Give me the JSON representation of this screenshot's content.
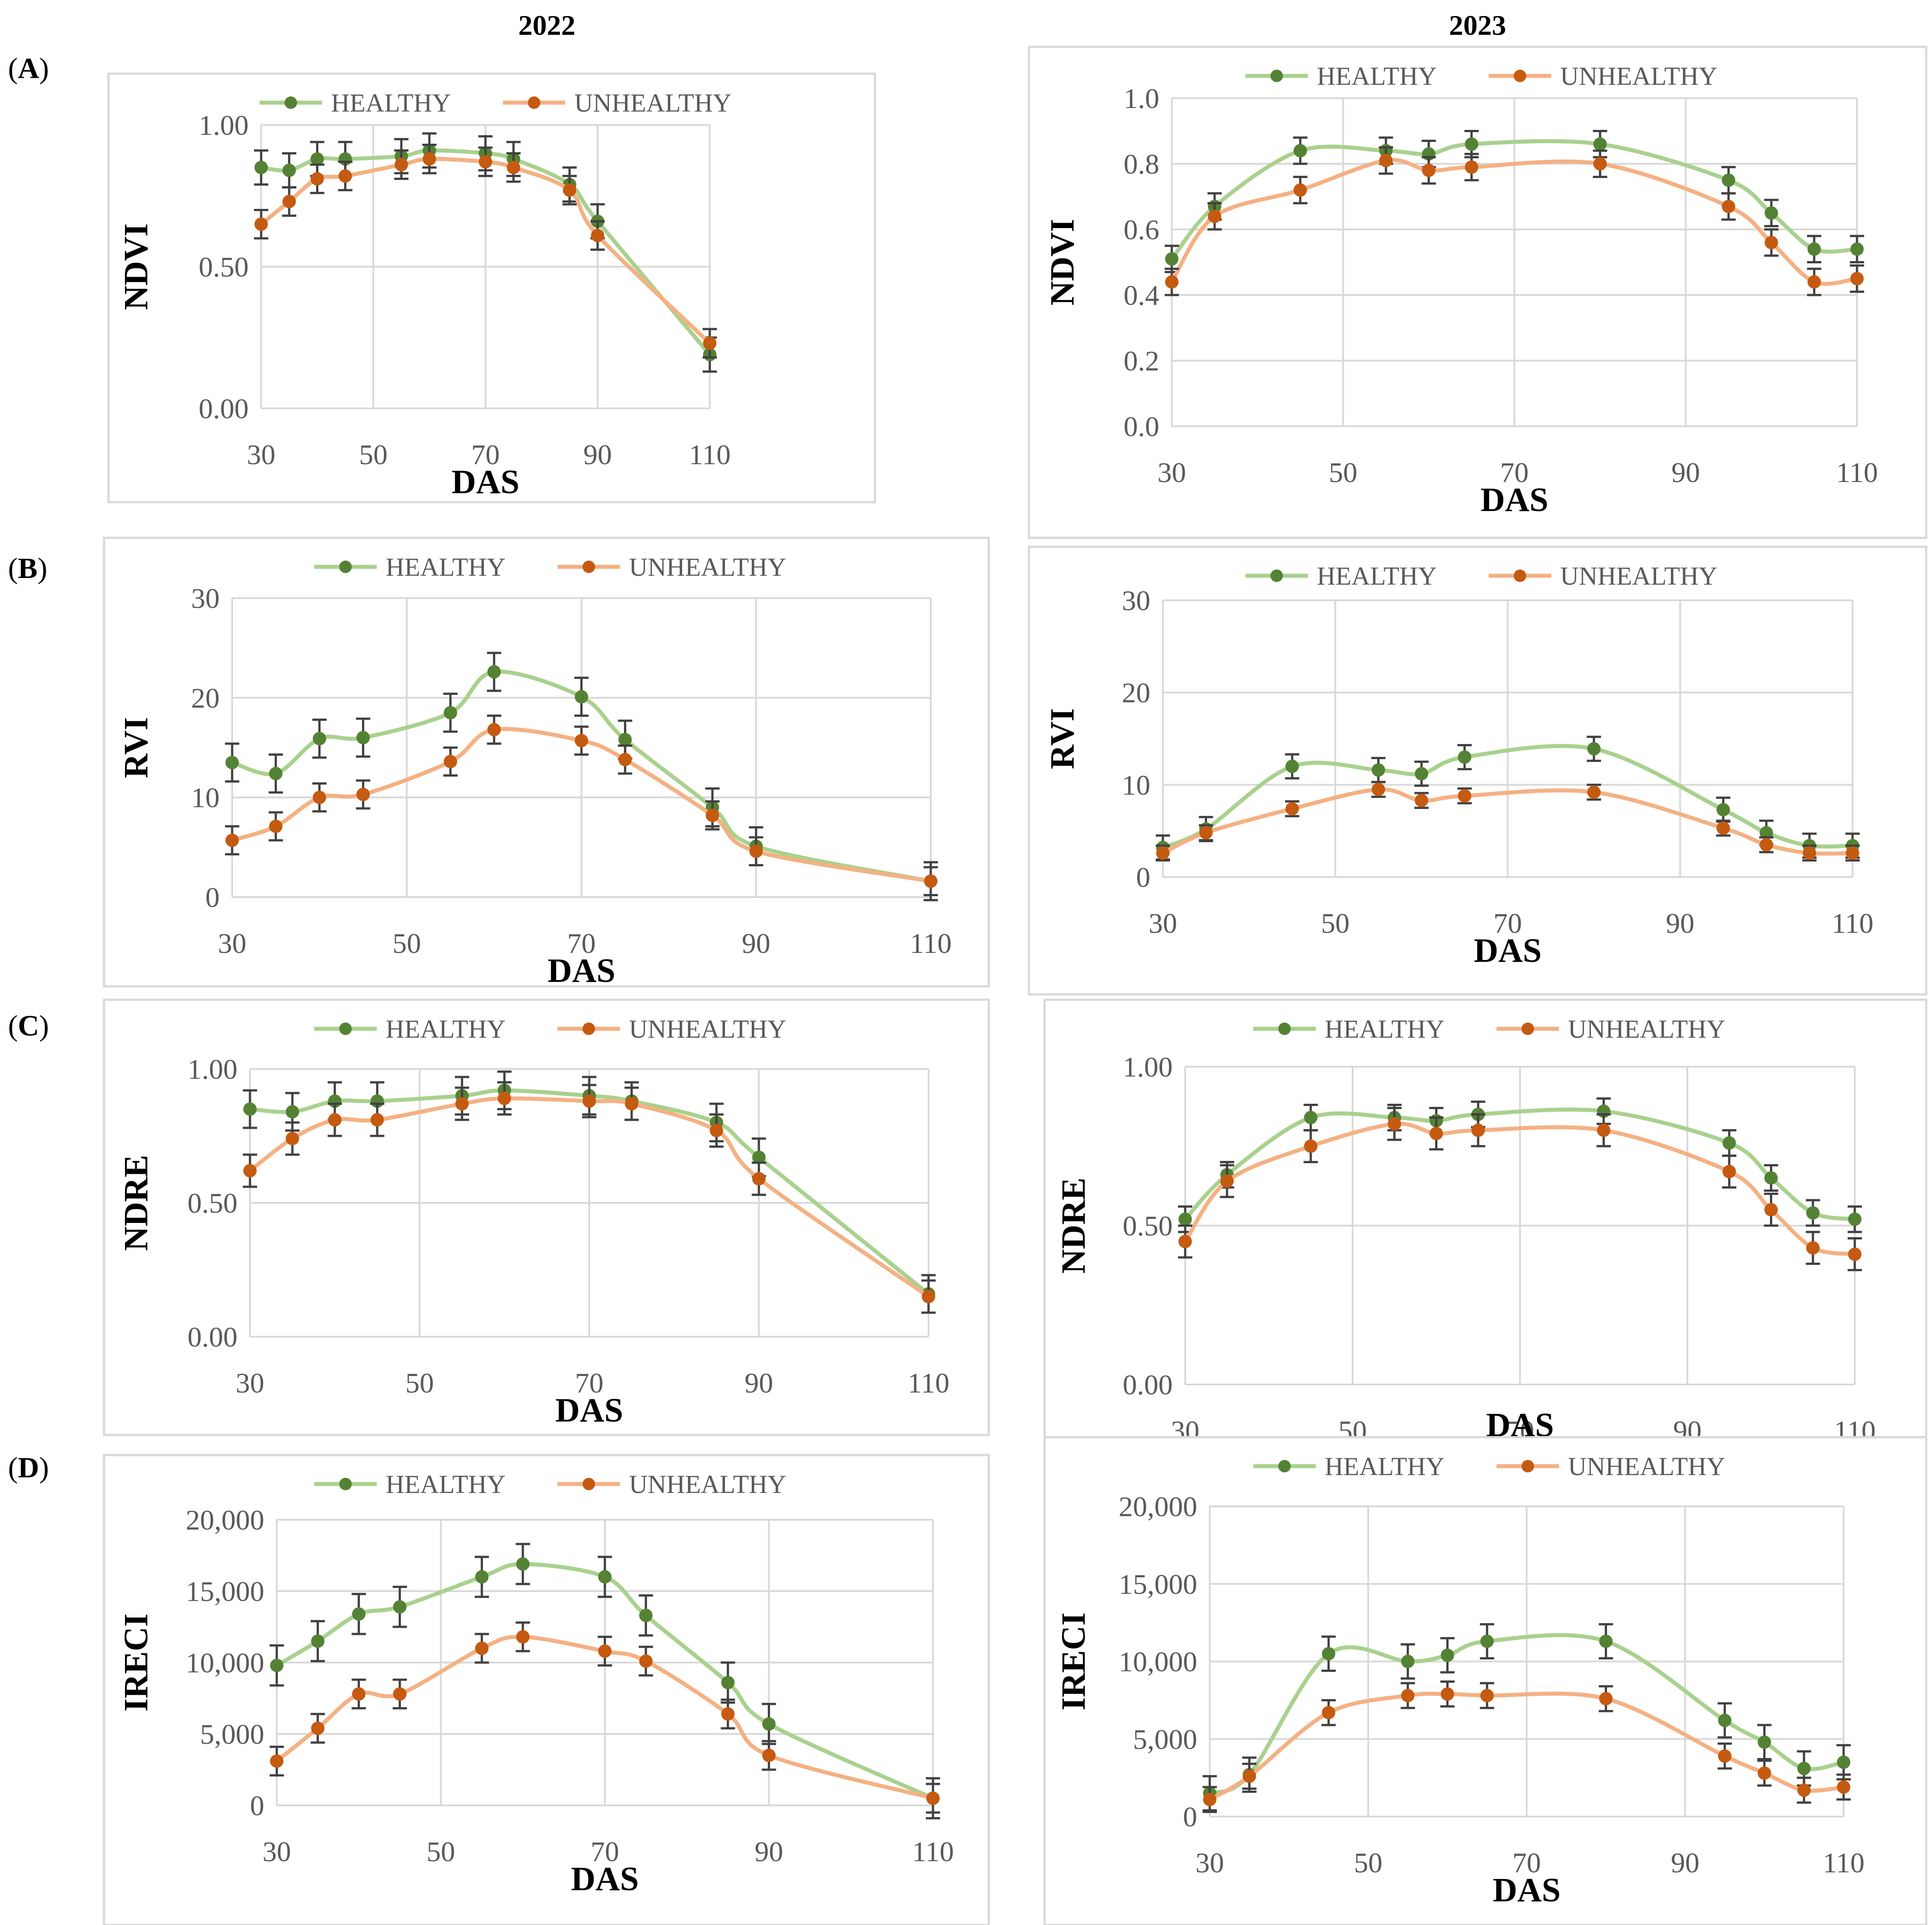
{
  "figure": {
    "columns": [
      "2022",
      "2023"
    ],
    "row_labels": [
      {
        "open": "(",
        "letter": "A",
        "close": ")"
      },
      {
        "open": "(",
        "letter": "B",
        "close": ")"
      },
      {
        "open": "(",
        "letter": "C",
        "close": ")"
      },
      {
        "open": "(",
        "letter": "D",
        "close": ")"
      }
    ],
    "legend": {
      "healthy": "HEALTHY",
      "unhealthy": "UNHEALTHY"
    },
    "colors": {
      "healthy_line": "#a9d18e",
      "healthy_marker": "#548235",
      "unhealthy_line": "#f4b183",
      "unhealthy_marker": "#c55a11",
      "error_bar": "#404040",
      "grid": "#d9d9d9",
      "frame": "#d9d9d9",
      "text": "#595959"
    }
  },
  "chart_data": [
    {
      "id": "A-2022",
      "type": "line",
      "title": "",
      "xlabel": "DAS",
      "ylabel": "NDVI",
      "x": [
        30,
        35,
        40,
        45,
        55,
        60,
        70,
        75,
        85,
        90,
        110
      ],
      "xlim": [
        30,
        110
      ],
      "xticks": [
        30,
        50,
        70,
        90,
        110
      ],
      "xtick_labels": [
        "30",
        "50",
        "70",
        "90",
        "110"
      ],
      "ylim": [
        0,
        1.0
      ],
      "yticks": [
        0,
        0.5,
        1.0
      ],
      "ytick_labels": [
        "0.00",
        "0.50",
        "1.00"
      ],
      "grid": "both",
      "legend": "top-center",
      "series": [
        {
          "name": "HEALTHY",
          "values": [
            0.85,
            0.84,
            0.88,
            0.88,
            0.89,
            0.91,
            0.9,
            0.88,
            0.79,
            0.66,
            0.19
          ],
          "errors": [
            0.06,
            0.06,
            0.06,
            0.06,
            0.06,
            0.06,
            0.06,
            0.06,
            0.06,
            0.06,
            0.06
          ]
        },
        {
          "name": "UNHEALTHY",
          "values": [
            0.65,
            0.73,
            0.81,
            0.82,
            0.86,
            0.88,
            0.87,
            0.85,
            0.77,
            0.61,
            0.23
          ],
          "errors": [
            0.05,
            0.05,
            0.05,
            0.05,
            0.05,
            0.05,
            0.05,
            0.05,
            0.05,
            0.05,
            0.05
          ]
        }
      ]
    },
    {
      "id": "A-2023",
      "type": "line",
      "title": "",
      "xlabel": "DAS",
      "ylabel": "NDVI",
      "x": [
        30,
        35,
        45,
        55,
        60,
        65,
        80,
        95,
        100,
        105,
        110
      ],
      "xlim": [
        30,
        110
      ],
      "xticks": [
        30,
        50,
        70,
        90,
        110
      ],
      "xtick_labels": [
        "30",
        "50",
        "70",
        "90",
        "110"
      ],
      "ylim": [
        0,
        1.0
      ],
      "yticks": [
        0,
        0.2,
        0.4,
        0.6,
        0.8,
        1.0
      ],
      "ytick_labels": [
        "0.0",
        "0.2",
        "0.4",
        "0.6",
        "0.8",
        "1.0"
      ],
      "grid": "both",
      "legend": "top-center",
      "series": [
        {
          "name": "HEALTHY",
          "values": [
            0.51,
            0.67,
            0.84,
            0.84,
            0.83,
            0.86,
            0.86,
            0.75,
            0.65,
            0.54,
            0.54
          ],
          "errors": [
            0.04,
            0.04,
            0.04,
            0.04,
            0.04,
            0.04,
            0.04,
            0.04,
            0.04,
            0.04,
            0.04
          ]
        },
        {
          "name": "UNHEALTHY",
          "values": [
            0.44,
            0.64,
            0.72,
            0.81,
            0.78,
            0.79,
            0.8,
            0.67,
            0.56,
            0.44,
            0.45
          ],
          "errors": [
            0.04,
            0.04,
            0.04,
            0.04,
            0.04,
            0.04,
            0.04,
            0.04,
            0.04,
            0.04,
            0.04
          ]
        }
      ]
    },
    {
      "id": "B-2022",
      "type": "line",
      "title": "",
      "xlabel": "DAS",
      "ylabel": "RVI",
      "x": [
        30,
        35,
        40,
        45,
        55,
        60,
        70,
        75,
        85,
        90,
        110
      ],
      "xlim": [
        30,
        110
      ],
      "xticks": [
        30,
        50,
        70,
        90,
        110
      ],
      "xtick_labels": [
        "30",
        "50",
        "70",
        "90",
        "110"
      ],
      "ylim": [
        0,
        30
      ],
      "yticks": [
        0,
        10,
        20,
        30
      ],
      "ytick_labels": [
        "0",
        "10",
        "20",
        "30"
      ],
      "grid": "both",
      "legend": "top-center",
      "series": [
        {
          "name": "HEALTHY",
          "values": [
            13.5,
            12.4,
            15.9,
            16.0,
            18.5,
            22.6,
            20.1,
            15.8,
            9.0,
            5.1,
            1.6
          ],
          "errors": [
            1.9,
            1.9,
            1.9,
            1.9,
            1.9,
            1.9,
            1.9,
            1.9,
            1.9,
            1.9,
            1.9
          ]
        },
        {
          "name": "UNHEALTHY",
          "values": [
            5.7,
            7.1,
            10.0,
            10.3,
            13.6,
            16.8,
            15.7,
            13.8,
            8.2,
            4.6,
            1.6
          ],
          "errors": [
            1.4,
            1.4,
            1.4,
            1.4,
            1.4,
            1.4,
            1.4,
            1.4,
            1.4,
            1.4,
            1.4
          ]
        }
      ]
    },
    {
      "id": "B-2023",
      "type": "line",
      "title": "",
      "xlabel": "DAS",
      "ylabel": "RVI",
      "x": [
        30,
        35,
        45,
        55,
        60,
        65,
        80,
        95,
        100,
        105,
        110
      ],
      "xlim": [
        30,
        110
      ],
      "xticks": [
        30,
        50,
        70,
        90,
        110
      ],
      "xtick_labels": [
        "30",
        "50",
        "70",
        "90",
        "110"
      ],
      "ylim": [
        0,
        30
      ],
      "yticks": [
        0,
        10,
        20,
        30
      ],
      "ytick_labels": [
        "0",
        "10",
        "20",
        "30"
      ],
      "grid": "both",
      "legend": "top-center",
      "series": [
        {
          "name": "HEALTHY",
          "values": [
            3.2,
            5.2,
            12.0,
            11.6,
            11.2,
            13.0,
            13.9,
            7.3,
            4.8,
            3.4,
            3.4
          ],
          "errors": [
            1.3,
            1.3,
            1.3,
            1.3,
            1.3,
            1.3,
            1.3,
            1.3,
            1.3,
            1.3,
            1.3
          ]
        },
        {
          "name": "UNHEALTHY",
          "values": [
            2.6,
            4.8,
            7.4,
            9.5,
            8.3,
            8.8,
            9.2,
            5.3,
            3.5,
            2.6,
            2.6
          ],
          "errors": [
            0.8,
            0.8,
            0.8,
            0.8,
            0.8,
            0.8,
            0.8,
            0.8,
            0.8,
            0.8,
            0.8
          ]
        }
      ]
    },
    {
      "id": "C-2022",
      "type": "line",
      "title": "",
      "xlabel": "DAS",
      "ylabel": "NDRE",
      "x": [
        30,
        35,
        40,
        45,
        55,
        60,
        70,
        75,
        85,
        90,
        110
      ],
      "xlim": [
        30,
        110
      ],
      "xticks": [
        30,
        50,
        70,
        90,
        110
      ],
      "xtick_labels": [
        "30",
        "50",
        "70",
        "90",
        "110"
      ],
      "ylim": [
        0,
        1.0
      ],
      "yticks": [
        0,
        0.5,
        1.0
      ],
      "ytick_labels": [
        "0.00",
        "0.50",
        "1.00"
      ],
      "grid": "both",
      "legend": "top-center",
      "series": [
        {
          "name": "HEALTHY",
          "values": [
            0.85,
            0.84,
            0.88,
            0.88,
            0.9,
            0.92,
            0.9,
            0.88,
            0.8,
            0.67,
            0.16
          ],
          "errors": [
            0.07,
            0.07,
            0.07,
            0.07,
            0.07,
            0.07,
            0.07,
            0.07,
            0.07,
            0.07,
            0.07
          ]
        },
        {
          "name": "UNHEALTHY",
          "values": [
            0.62,
            0.74,
            0.81,
            0.81,
            0.87,
            0.89,
            0.88,
            0.87,
            0.77,
            0.59,
            0.15
          ],
          "errors": [
            0.06,
            0.06,
            0.06,
            0.06,
            0.06,
            0.06,
            0.06,
            0.06,
            0.06,
            0.06,
            0.06
          ]
        }
      ]
    },
    {
      "id": "C-2023",
      "type": "line",
      "title": "",
      "xlabel": "DAS",
      "ylabel": "NDRE",
      "x": [
        30,
        35,
        45,
        55,
        60,
        65,
        80,
        95,
        100,
        105,
        110
      ],
      "xlim": [
        30,
        110
      ],
      "xticks": [
        30,
        50,
        70,
        90,
        110
      ],
      "xtick_labels": [
        "30",
        "50",
        "70",
        "90",
        "110"
      ],
      "ylim": [
        0,
        1.0
      ],
      "yticks": [
        0,
        0.5,
        1.0
      ],
      "ytick_labels": [
        "0.00",
        "0.50",
        "1.00"
      ],
      "grid": "both",
      "legend": "top-center",
      "series": [
        {
          "name": "HEALTHY",
          "values": [
            0.52,
            0.66,
            0.84,
            0.84,
            0.83,
            0.85,
            0.86,
            0.76,
            0.65,
            0.54,
            0.52
          ],
          "errors": [
            0.04,
            0.04,
            0.04,
            0.04,
            0.04,
            0.04,
            0.04,
            0.04,
            0.04,
            0.04,
            0.04
          ]
        },
        {
          "name": "UNHEALTHY",
          "values": [
            0.45,
            0.64,
            0.75,
            0.82,
            0.79,
            0.8,
            0.8,
            0.67,
            0.55,
            0.43,
            0.41
          ],
          "errors": [
            0.05,
            0.05,
            0.05,
            0.05,
            0.05,
            0.05,
            0.05,
            0.05,
            0.05,
            0.05,
            0.05
          ]
        }
      ]
    },
    {
      "id": "D-2022",
      "type": "line",
      "title": "",
      "xlabel": "DAS",
      "ylabel": "IRECI",
      "x": [
        30,
        35,
        40,
        45,
        55,
        60,
        70,
        75,
        85,
        90,
        110
      ],
      "xlim": [
        30,
        110
      ],
      "xticks": [
        30,
        50,
        70,
        90,
        110
      ],
      "xtick_labels": [
        "30",
        "50",
        "70",
        "90",
        "110"
      ],
      "ylim": [
        0,
        20000
      ],
      "yticks": [
        0,
        5000,
        10000,
        15000,
        20000
      ],
      "ytick_labels": [
        "0",
        "5,000",
        "10,000",
        "15,000",
        "20,000"
      ],
      "grid": "both",
      "legend": "top-center",
      "series": [
        {
          "name": "HEALTHY",
          "values": [
            9800,
            11500,
            13400,
            13900,
            16000,
            16900,
            16000,
            13300,
            8600,
            5700,
            500
          ],
          "errors": [
            1400,
            1400,
            1400,
            1400,
            1400,
            1400,
            1400,
            1400,
            1400,
            1400,
            1400
          ]
        },
        {
          "name": "UNHEALTHY",
          "values": [
            3100,
            5400,
            7800,
            7800,
            11000,
            11800,
            10800,
            10100,
            6400,
            3500,
            500
          ],
          "errors": [
            1000,
            1000,
            1000,
            1000,
            1000,
            1000,
            1000,
            1000,
            1000,
            1000,
            1000
          ]
        }
      ]
    },
    {
      "id": "D-2023",
      "type": "line",
      "title": "",
      "xlabel": "DAS",
      "ylabel": "IRECI",
      "x": [
        30,
        35,
        45,
        55,
        60,
        65,
        80,
        95,
        100,
        105,
        110
      ],
      "xlim": [
        30,
        110
      ],
      "xticks": [
        30,
        50,
        70,
        90,
        110
      ],
      "xtick_labels": [
        "30",
        "50",
        "70",
        "90",
        "110"
      ],
      "ylim": [
        0,
        20000
      ],
      "yticks": [
        0,
        5000,
        10000,
        15000,
        20000
      ],
      "ytick_labels": [
        "0",
        "5,000",
        "10,000",
        "15,000",
        "20,000"
      ],
      "grid": "both",
      "legend": "top-center",
      "series": [
        {
          "name": "HEALTHY",
          "values": [
            1500,
            2700,
            10500,
            10000,
            10400,
            11300,
            11300,
            6200,
            4800,
            3100,
            3500
          ],
          "errors": [
            1100,
            1100,
            1100,
            1100,
            1100,
            1100,
            1100,
            1100,
            1100,
            1100,
            1100
          ]
        },
        {
          "name": "UNHEALTHY",
          "values": [
            1100,
            2600,
            6700,
            7800,
            7900,
            7800,
            7600,
            3900,
            2800,
            1700,
            1900
          ],
          "errors": [
            800,
            800,
            800,
            800,
            800,
            800,
            800,
            800,
            800,
            800,
            800
          ]
        }
      ]
    }
  ]
}
